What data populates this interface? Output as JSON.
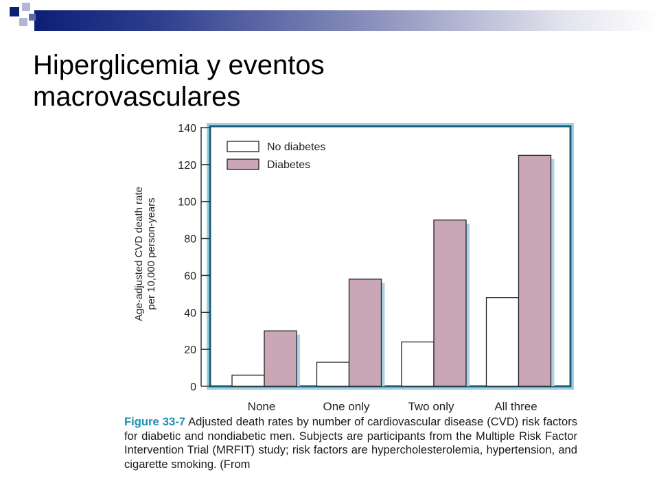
{
  "slide": {
    "title": "Hiperglicemia y eventos macrovasculares"
  },
  "decor": {
    "bar_colors": [
      "#0b1f75",
      "#8d93bd"
    ],
    "square_dark": "#0b1f75",
    "square_light": "#b3b7d6"
  },
  "colors": {
    "no_diabetes_fill": "#ffffff",
    "diabetes_fill": "#c9a7b7",
    "bar_shadow": "#a8d4e6",
    "frame": "#1c5e78",
    "frame_outer": "#9fd0e3"
  },
  "chart_data": {
    "type": "bar",
    "categories": [
      "None",
      "One only",
      "Two only",
      "All three"
    ],
    "series": [
      {
        "name": "No diabetes",
        "values": [
          6,
          13,
          24,
          48
        ]
      },
      {
        "name": "Diabetes",
        "values": [
          30,
          58,
          90,
          125
        ]
      }
    ],
    "ylabel_line1": "Age-adjusted CVD death rate",
    "ylabel_line2": "per 10,000 person-years",
    "ylim": [
      0,
      140
    ],
    "yticks": [
      0,
      20,
      40,
      60,
      80,
      100,
      120,
      140
    ],
    "legend_position": "top-left",
    "grid": false
  },
  "caption": {
    "label": "Figure 33-7",
    "text": "Adjusted death rates by number of cardiovascular disease (CVD) risk factors for diabetic and nondiabetic men. Subjects are participants from the Multiple Risk Factor Intervention Trial (MRFIT) study; risk factors are hypercholesterolemia, hypertension, and cigarette smoking. (From"
  }
}
